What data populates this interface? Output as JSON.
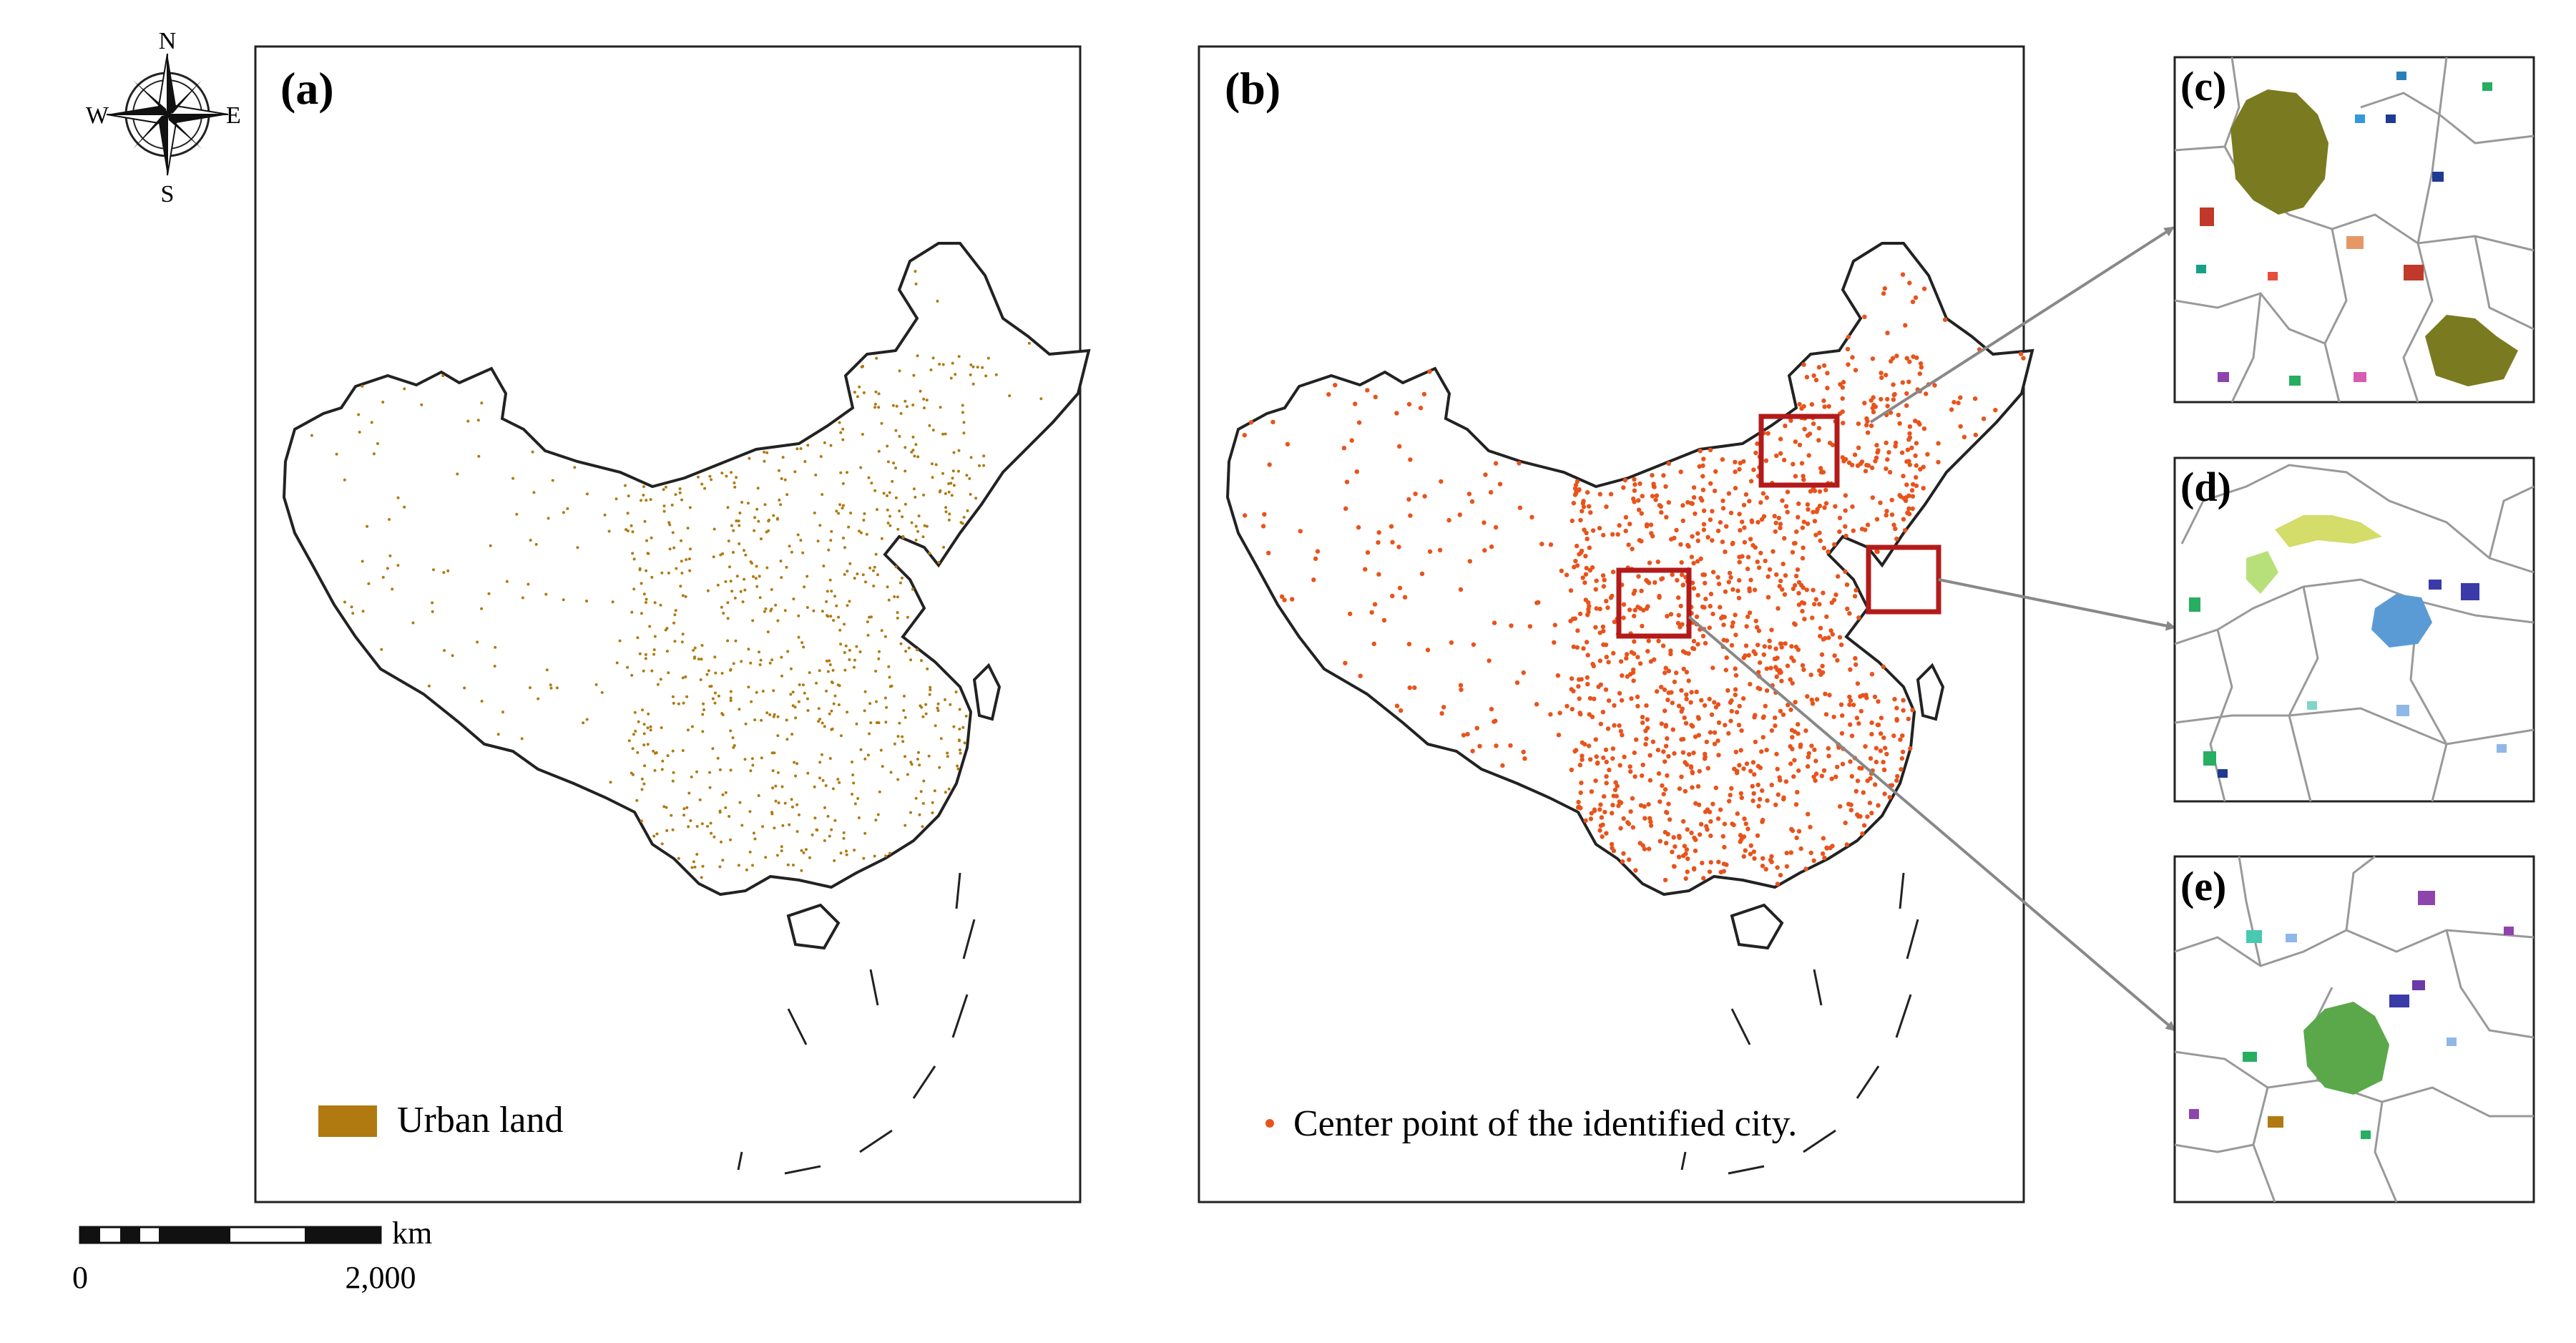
{
  "compass": {
    "north": "N",
    "south": "S",
    "east": "E",
    "west": "W"
  },
  "panels": {
    "a": {
      "label": "(a)",
      "legend_text": "Urban land",
      "legend_color": "#b07a10"
    },
    "b": {
      "label": "(b)",
      "legend_text": "Center point of the identified city.",
      "point_color": "#e8531c"
    },
    "c": {
      "label": "(c)"
    },
    "d": {
      "label": "(d)"
    },
    "e": {
      "label": "(e)"
    }
  },
  "scale_bar": {
    "unit": "km",
    "start_label": "0",
    "end_label": "2,000"
  },
  "colors": {
    "boundary": "#222222",
    "highlight_box": "#b31b1b",
    "arrow": "#888888",
    "urban": "#b07a10",
    "city_point": "#e8531c"
  }
}
